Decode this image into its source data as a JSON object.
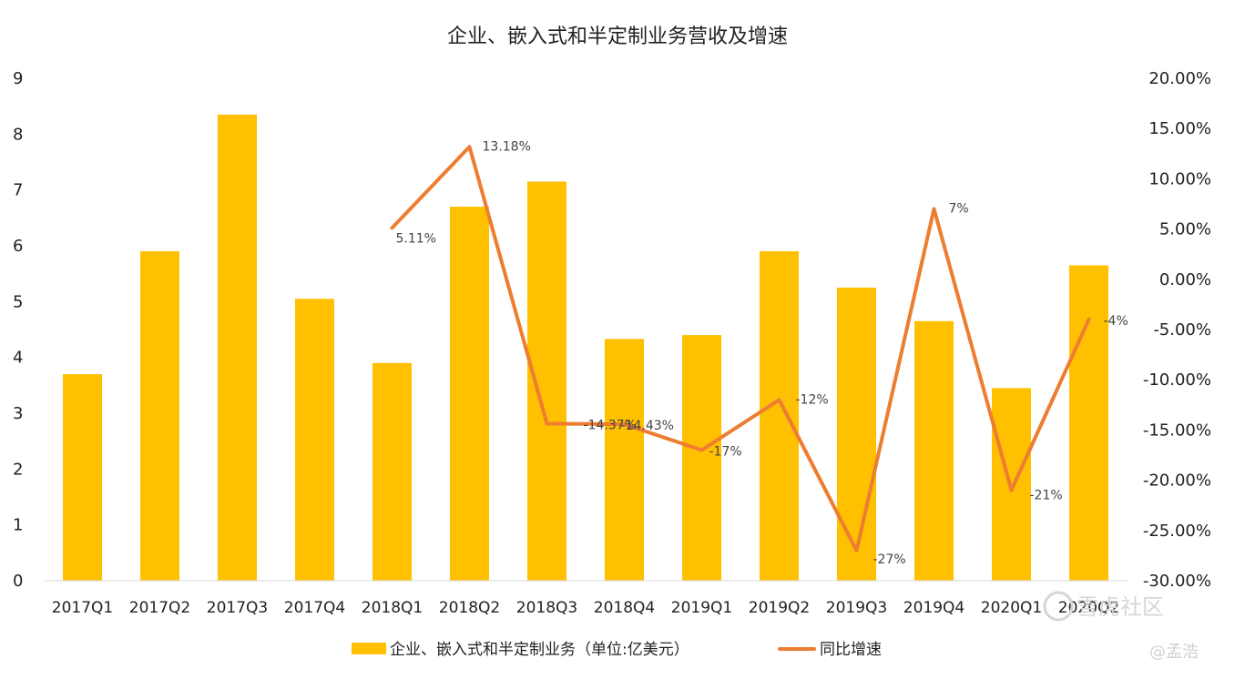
{
  "chart_data": {
    "type": "bar",
    "title": "企业、嵌入式和半定制业务营收及增速",
    "categories": [
      "2017Q1",
      "2017Q2",
      "2017Q3",
      "2017Q4",
      "2018Q1",
      "2018Q2",
      "2018Q3",
      "2018Q4",
      "2019Q1",
      "2019Q2",
      "2019Q3",
      "2019Q4",
      "2020Q1",
      "2020Q2"
    ],
    "y_left": {
      "min": 0,
      "max": 9,
      "ticks": [
        "0",
        "1",
        "2",
        "3",
        "4",
        "5",
        "6",
        "7",
        "8",
        "9"
      ]
    },
    "y_right": {
      "min": -30,
      "max": 20,
      "ticks": [
        "-30.00%",
        "-25.00%",
        "-20.00%",
        "-15.00%",
        "-10.00%",
        "-5.00%",
        "0.00%",
        "5.00%",
        "10.00%",
        "15.00%",
        "20.00%"
      ]
    },
    "grid": false,
    "legend_position": "bottom",
    "series": [
      {
        "name": "企业、嵌入式和半定制业务（单位:亿美元）",
        "type": "bar",
        "axis": "left",
        "color": "#FFC000",
        "values": [
          3.7,
          5.9,
          8.35,
          5.05,
          3.9,
          6.7,
          7.15,
          4.33,
          4.4,
          5.9,
          5.25,
          4.65,
          3.45,
          5.65
        ]
      },
      {
        "name": "同比增速",
        "type": "line",
        "axis": "right",
        "color": "#ED7D31",
        "values": [
          null,
          null,
          null,
          null,
          5.11,
          13.18,
          -14.37,
          -14.43,
          -17,
          -12,
          -27,
          7,
          -21,
          -4
        ],
        "labels": [
          null,
          null,
          null,
          null,
          "5.11%",
          "13.18%",
          "-14.37%",
          "-14.43%",
          "-17%",
          "-12%",
          "-27%",
          "7%",
          "-21%",
          "-4%"
        ]
      }
    ]
  },
  "watermark": {
    "text": "雪虎社区",
    "author": "@孟浩"
  }
}
